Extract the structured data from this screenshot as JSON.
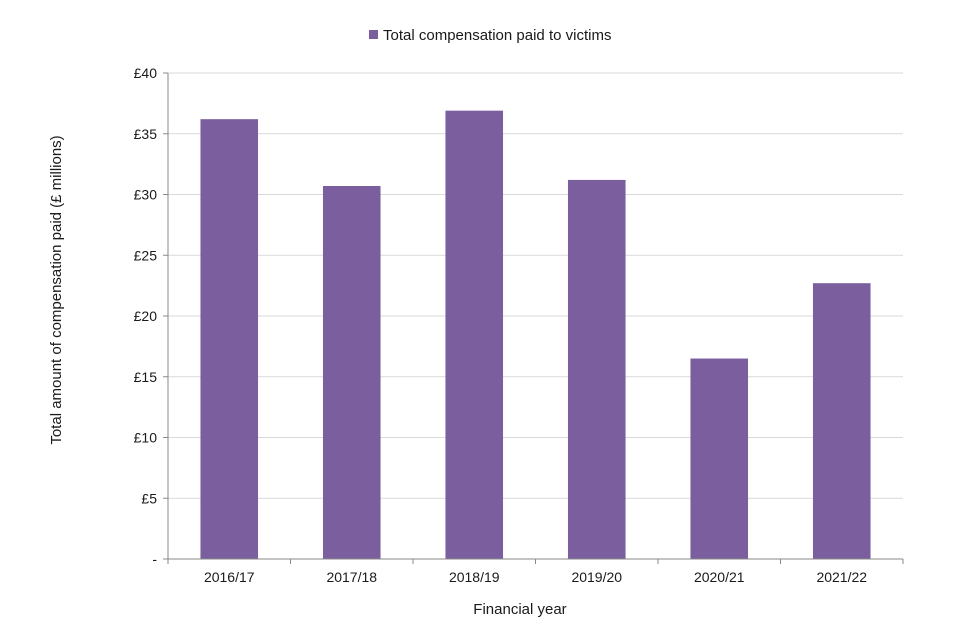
{
  "chart_data": {
    "type": "bar",
    "categories": [
      "2016/17",
      "2017/18",
      "2018/19",
      "2019/20",
      "2020/21",
      "2021/22"
    ],
    "series": [
      {
        "name": "Total compensation paid to victims",
        "values": [
          36.2,
          30.7,
          36.9,
          31.2,
          16.5,
          22.7
        ]
      }
    ],
    "xlabel": "Financial year",
    "ylabel": "Total amount of compensation paid (£ millions)",
    "ylim": [
      0,
      40
    ],
    "yticks": [
      {
        "value": 0,
        "label": "-"
      },
      {
        "value": 5,
        "label": "£5"
      },
      {
        "value": 10,
        "label": "£10"
      },
      {
        "value": 15,
        "label": "£15"
      },
      {
        "value": 20,
        "label": "£20"
      },
      {
        "value": 25,
        "label": "£25"
      },
      {
        "value": 30,
        "label": "£30"
      },
      {
        "value": 35,
        "label": "£35"
      },
      {
        "value": 40,
        "label": "£40"
      }
    ],
    "grid": true,
    "legend_position": "top-center",
    "colors": {
      "bar": "#7b5e9e",
      "grid": "#d9d9d9",
      "axis": "#888888"
    }
  }
}
